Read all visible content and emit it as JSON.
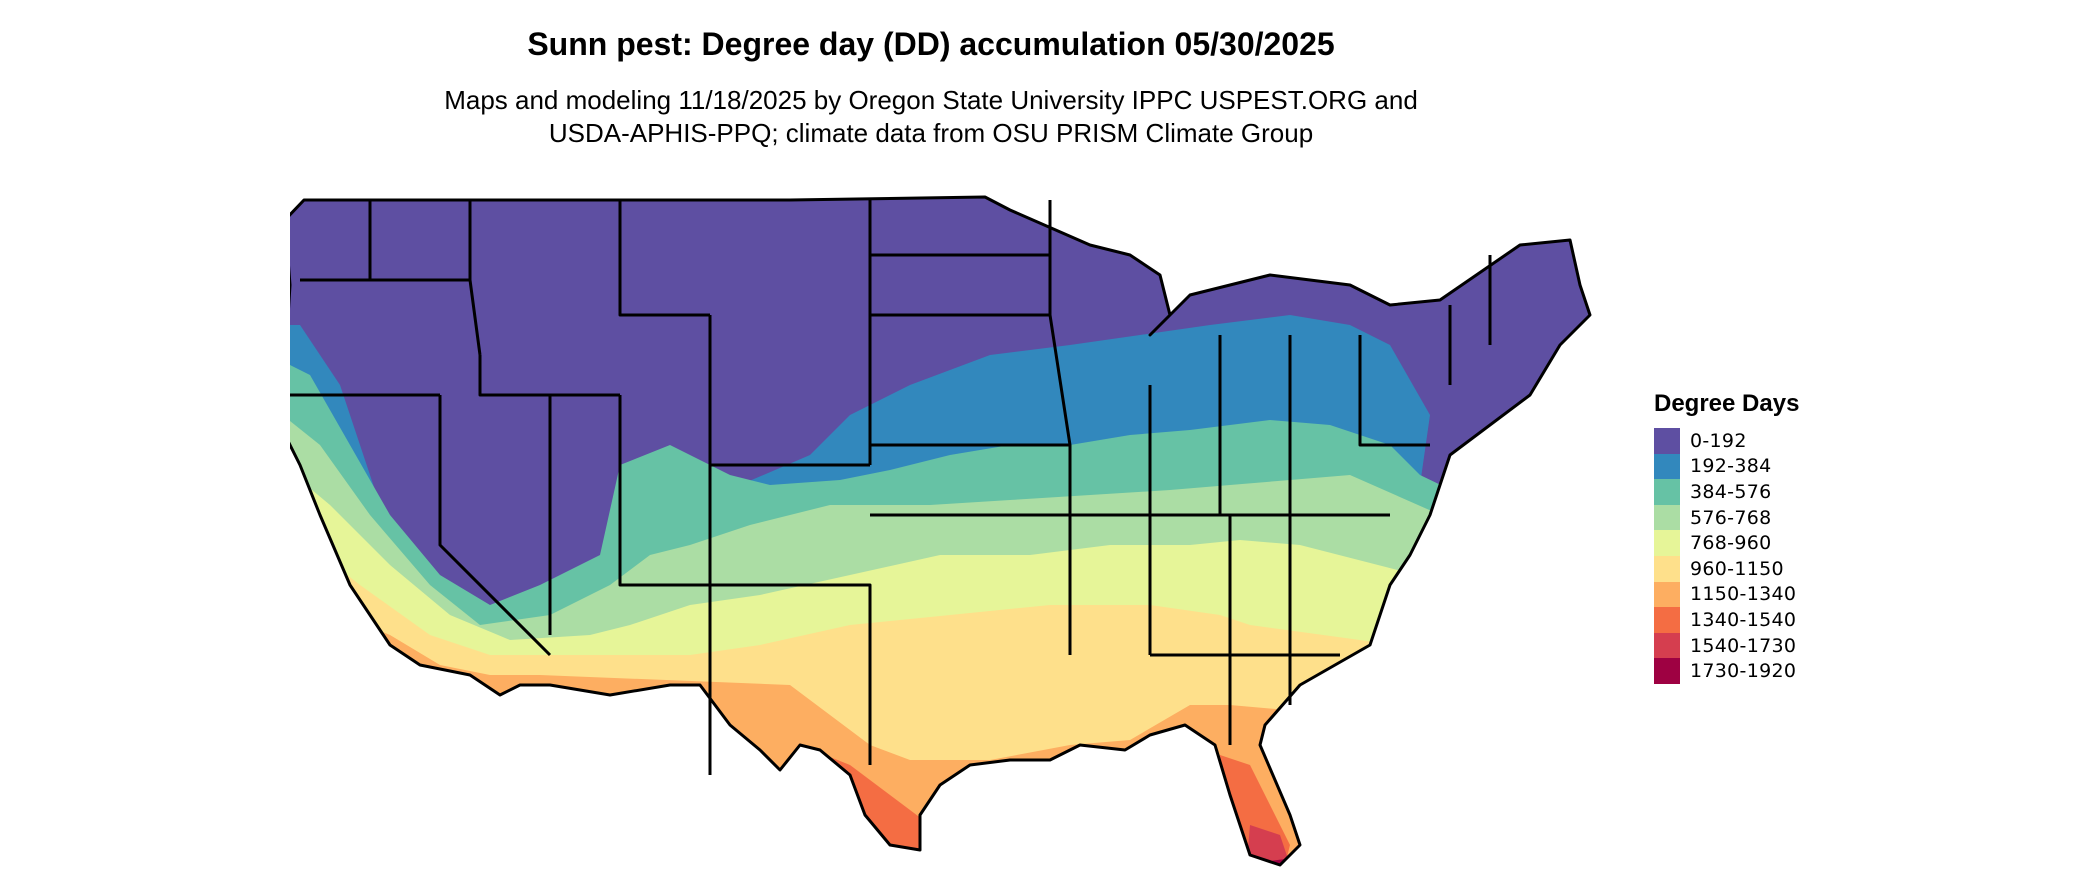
{
  "title": "Sunn pest: Degree day (DD) accumulation 05/30/2025",
  "subtitle_line1": "Maps and modeling 11/18/2025 by Oregon State University IPPC USPEST.ORG and",
  "subtitle_line2": "USDA-APHIS-PPQ; climate data from OSU PRISM Climate Group",
  "legend": {
    "title": "Degree Days",
    "items": [
      {
        "label": "0-192",
        "color": "#5E4FA2"
      },
      {
        "label": "192-384",
        "color": "#3288BD"
      },
      {
        "label": "384-576",
        "color": "#66C2A5"
      },
      {
        "label": "576-768",
        "color": "#ABDDA4"
      },
      {
        "label": "768-960",
        "color": "#E6F598"
      },
      {
        "label": "960-1150",
        "color": "#FEE08B"
      },
      {
        "label": "1150-1340",
        "color": "#FDAE61"
      },
      {
        "label": "1340-1540",
        "color": "#F46D43"
      },
      {
        "label": "1540-1730",
        "color": "#D53E4F"
      },
      {
        "label": "1730-1920",
        "color": "#9E0142"
      }
    ]
  }
}
